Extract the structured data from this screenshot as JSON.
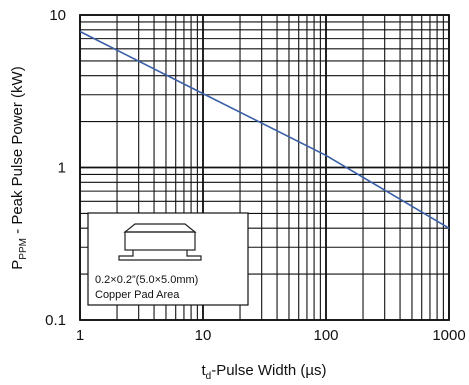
{
  "chart_data": {
    "type": "line",
    "x_scale": "log",
    "y_scale": "log",
    "xlim": [
      1,
      1000
    ],
    "ylim": [
      0.1,
      10
    ],
    "grid": true,
    "x_ticks": [
      "1",
      "10",
      "100",
      "1000"
    ],
    "y_ticks": [
      "10",
      "1",
      "0.1"
    ],
    "xlabel": {
      "main_pre": "t",
      "sub": "d",
      "main_post": "-Pulse Width (µs)"
    },
    "ylabel": {
      "main_pre": "P",
      "sub": "PPM",
      "main_post": " - Peak Pulse Power (kW)"
    },
    "series": [
      {
        "color": "#3a5fa8",
        "x": [
          1,
          10,
          100,
          1000
        ],
        "y": [
          7.8,
          3.05,
          1.2,
          0.4
        ]
      }
    ],
    "inset": {
      "line1": "0.2×0.2”(5.0×5.0mm)",
      "line2": "Copper Pad Area"
    }
  }
}
